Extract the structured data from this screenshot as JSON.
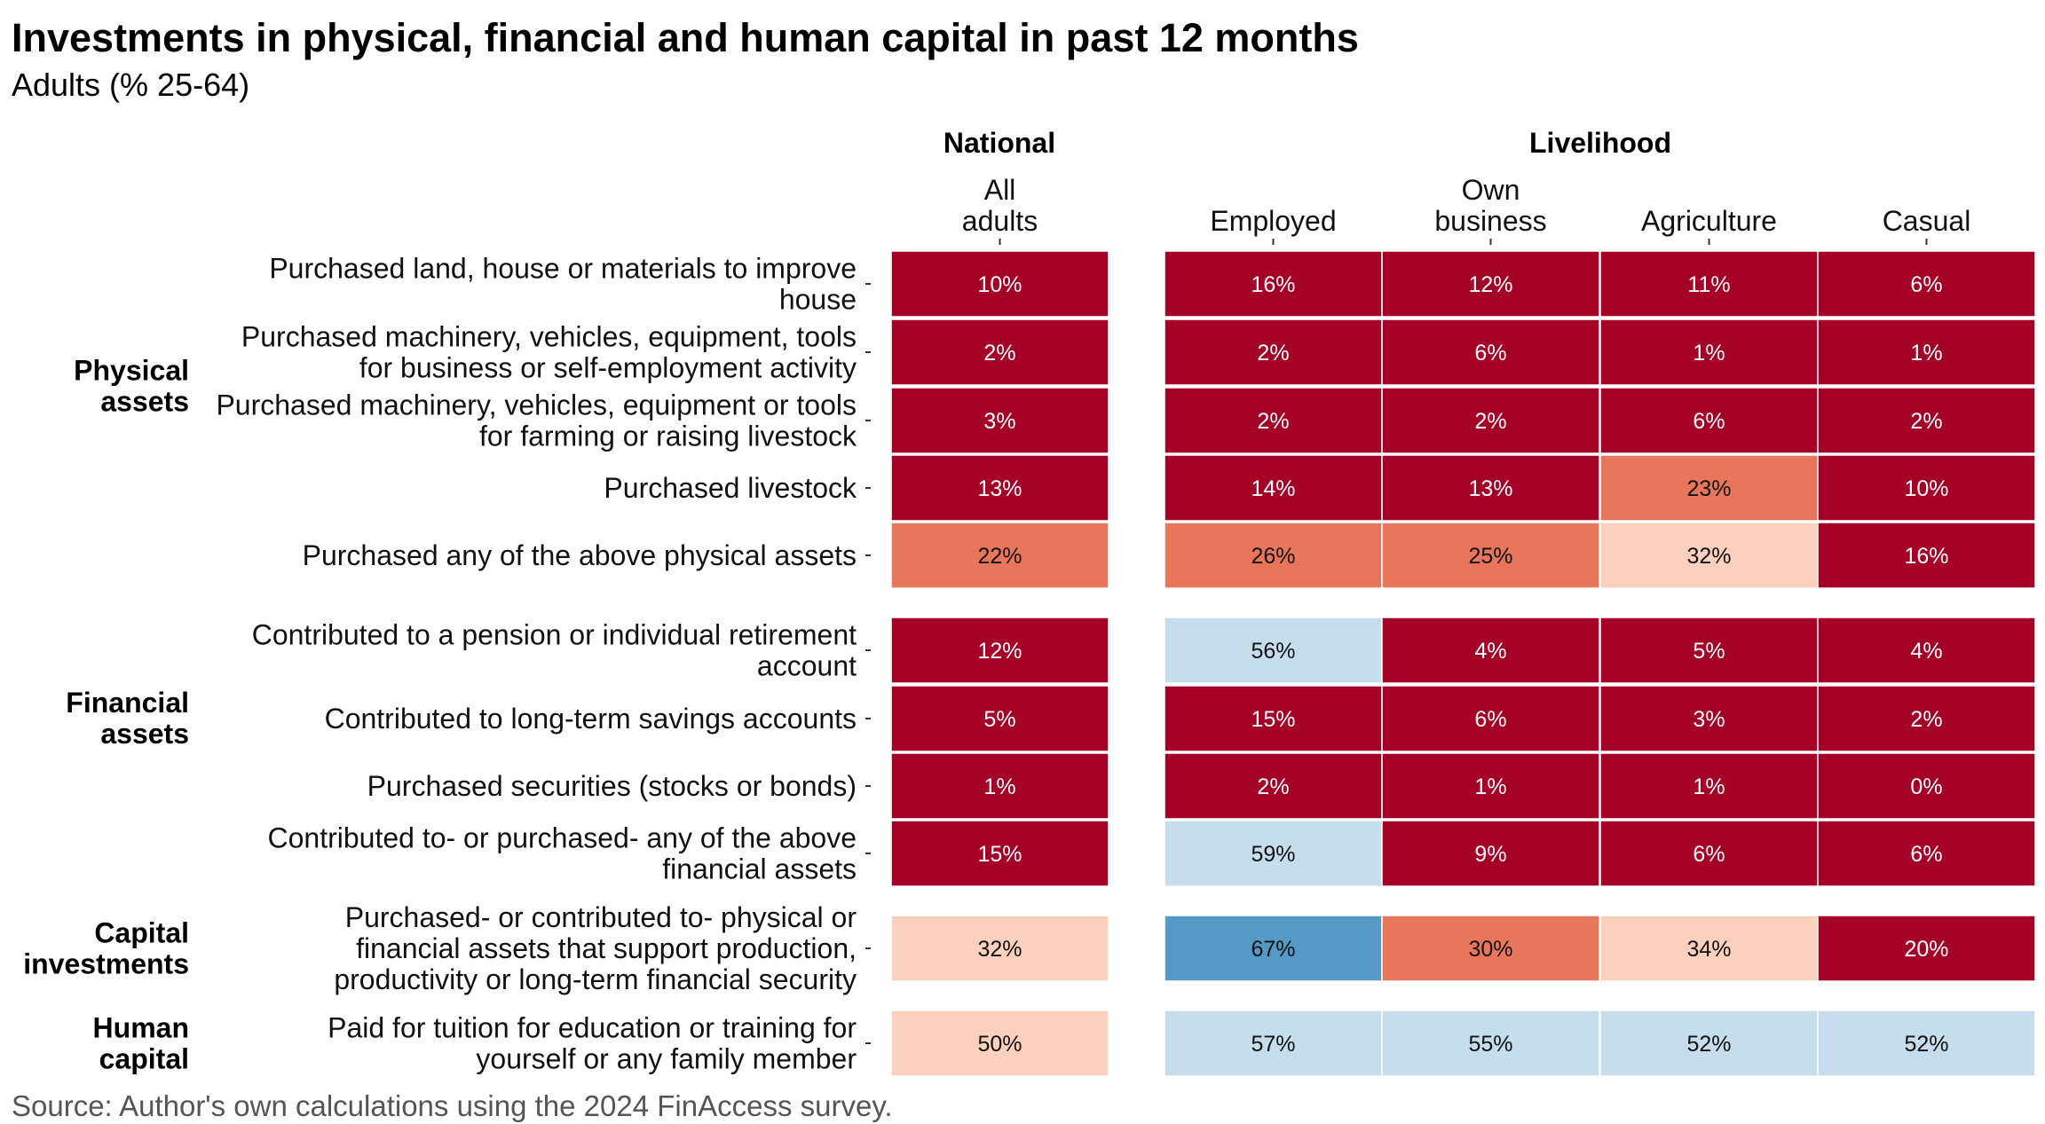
{
  "chart_data": {
    "type": "heatmap",
    "title": "Investments in physical, financial and human capital in past 12 months",
    "subtitle": "Adults (% 25-64)",
    "caption": "Source: Author's own calculations using the 2024 FinAccess survey.",
    "column_groups": [
      {
        "name": "National",
        "columns": [
          "All\nadults"
        ]
      },
      {
        "name": "Livelihood",
        "columns": [
          "Employed",
          "Own\nbusiness",
          "Agriculture",
          "Casual"
        ]
      }
    ],
    "sections": [
      {
        "name": "Physical\nassets",
        "rows": [
          0,
          1,
          2,
          3
        ]
      },
      {
        "name": "Financial\nassets",
        "rows": [
          5,
          6,
          7
        ]
      },
      {
        "name": "Capital\ninvestments",
        "rows": [
          9
        ]
      },
      {
        "name": "Human\ncapital",
        "rows": [
          10
        ]
      }
    ],
    "rows": [
      {
        "label": "Purchased land, house or materials to improve\nhouse",
        "values": [
          10,
          16,
          12,
          11,
          6
        ]
      },
      {
        "label": "Purchased machinery, vehicles, equipment, tools\nfor business or self-employment activity",
        "values": [
          2,
          2,
          6,
          1,
          1
        ]
      },
      {
        "label": "Purchased machinery, vehicles, equipment or tools\nfor farming or raising livestock",
        "values": [
          3,
          2,
          2,
          6,
          2
        ]
      },
      {
        "label": "Purchased livestock",
        "values": [
          13,
          14,
          13,
          23,
          10
        ]
      },
      {
        "label": "Purchased any of the above physical assets",
        "values": [
          22,
          26,
          25,
          32,
          16
        ]
      },
      {
        "label": "Contributed to a pension or individual retirement\naccount",
        "values": [
          12,
          56,
          4,
          5,
          4
        ]
      },
      {
        "label": "Contributed to long-term savings accounts",
        "values": [
          5,
          15,
          6,
          3,
          2
        ]
      },
      {
        "label": "Purchased securities (stocks or bonds)",
        "values": [
          1,
          2,
          1,
          1,
          0
        ]
      },
      {
        "label": "Contributed to- or purchased- any of the above\nfinancial assets",
        "values": [
          15,
          59,
          9,
          6,
          6
        ]
      },
      {
        "label": "Purchased- or contributed to- physical or\nfinancial assets that support production,\nproductivity or long-term financial security",
        "values": [
          32,
          67,
          30,
          34,
          20
        ]
      },
      {
        "label": "Paid for tuition for education or training for\nyourself or any family member",
        "values": [
          50,
          57,
          55,
          52,
          52
        ]
      }
    ],
    "value_suffix": "%",
    "color_scale": [
      {
        "max": 20,
        "color": "#a50026",
        "text": "#ffffff"
      },
      {
        "max": 30,
        "color": "#e8765a",
        "text": "#111111"
      },
      {
        "max": 50,
        "color": "#fbd0bc",
        "text": "#111111"
      },
      {
        "max": 60,
        "color": "#c5ddec",
        "text": "#111111"
      },
      {
        "max": 101,
        "color": "#5599c7",
        "text": "#111111"
      }
    ]
  }
}
